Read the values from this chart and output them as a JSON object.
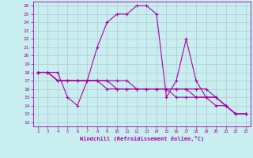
{
  "xlabel": "Windchill (Refroidissement éolien,°C)",
  "xlim": [
    1.5,
    23.5
  ],
  "ylim": [
    11.5,
    26.5
  ],
  "xticks": [
    2,
    3,
    4,
    5,
    6,
    7,
    8,
    9,
    10,
    11,
    12,
    13,
    14,
    15,
    16,
    17,
    18,
    19,
    20,
    21,
    22,
    23
  ],
  "yticks": [
    12,
    13,
    14,
    15,
    16,
    17,
    18,
    19,
    20,
    21,
    22,
    23,
    24,
    25,
    26
  ],
  "bg_color": "#c8eef0",
  "grid_color": "#b0c8d0",
  "line_color": "#aa00aa",
  "line1_x": [
    2,
    3,
    4,
    5,
    6,
    7,
    8,
    9,
    10,
    11,
    12,
    13,
    14,
    15,
    16,
    17,
    18,
    19,
    20,
    21,
    22,
    23
  ],
  "line1_y": [
    18,
    18,
    18,
    15,
    14,
    17,
    21,
    24,
    25,
    25,
    26,
    26,
    25,
    15,
    17,
    22,
    17,
    15,
    15,
    14,
    13,
    13
  ],
  "line2_x": [
    2,
    3,
    4,
    5,
    6,
    7,
    8,
    9,
    10,
    11,
    12,
    13,
    14,
    15,
    16,
    17,
    18,
    19,
    20,
    21,
    22,
    23
  ],
  "line2_y": [
    18,
    18,
    17,
    17,
    17,
    17,
    17,
    16,
    16,
    16,
    16,
    16,
    16,
    16,
    16,
    16,
    16,
    16,
    15,
    14,
    13,
    13
  ],
  "line3_x": [
    2,
    3,
    4,
    5,
    6,
    7,
    8,
    9,
    10,
    11,
    12,
    13,
    14,
    15,
    16,
    17,
    18,
    19,
    20,
    21,
    22,
    23
  ],
  "line3_y": [
    18,
    18,
    17,
    17,
    17,
    17,
    17,
    17,
    16,
    16,
    16,
    16,
    16,
    16,
    16,
    16,
    15,
    15,
    15,
    14,
    13,
    13
  ],
  "line4_x": [
    2,
    3,
    4,
    5,
    6,
    7,
    8,
    9,
    10,
    11,
    12,
    13,
    14,
    15,
    16,
    17,
    18,
    19,
    20,
    21,
    22,
    23
  ],
  "line4_y": [
    18,
    18,
    17,
    17,
    17,
    17,
    17,
    17,
    17,
    17,
    16,
    16,
    16,
    16,
    15,
    15,
    15,
    15,
    14,
    14,
    13,
    13
  ]
}
